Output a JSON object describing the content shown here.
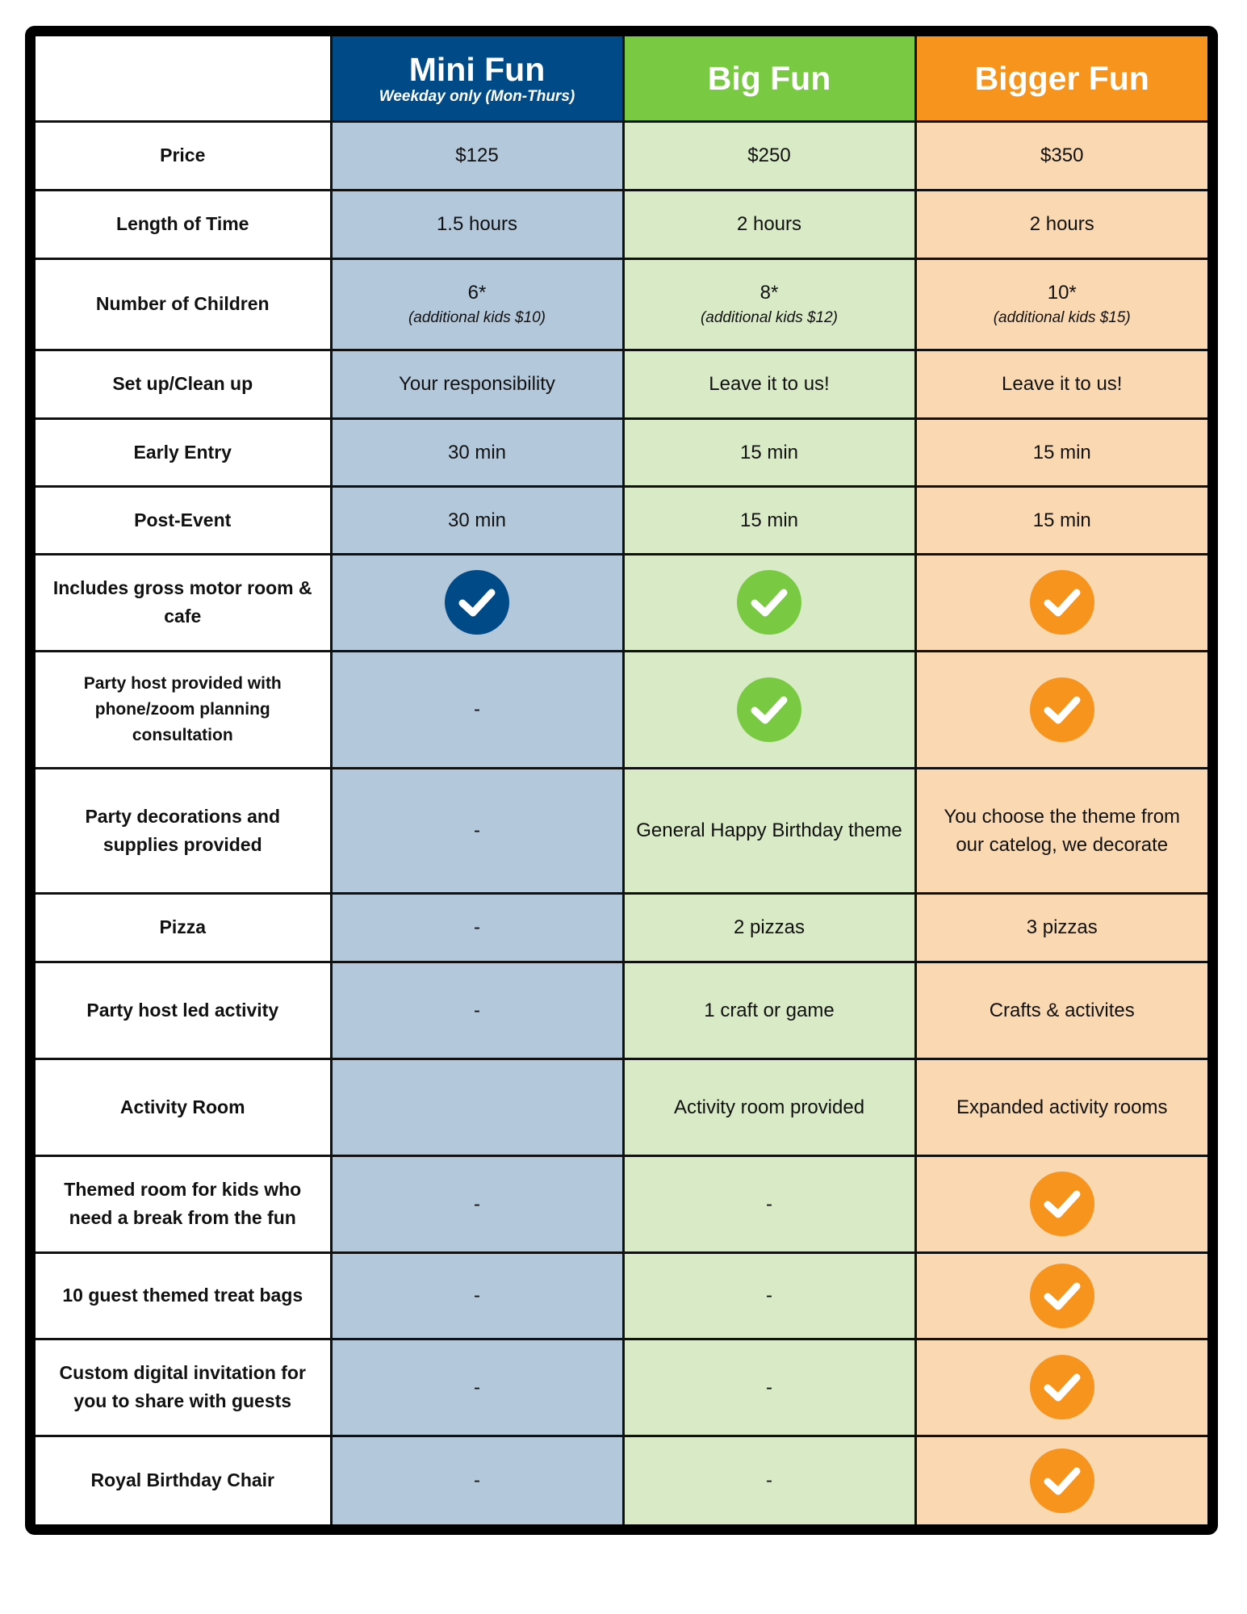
{
  "header": {
    "mini": {
      "title": "Mini Fun",
      "subtitle": "Weekday only (Mon-Thurs)"
    },
    "big": {
      "title": "Big Fun"
    },
    "bigger": {
      "title": "Bigger Fun"
    }
  },
  "colors": {
    "mini_header": "#004b87",
    "big_header": "#7ac943",
    "bigger_header": "#f7941d",
    "mini_cell": "#b4c8dc",
    "big_cell": "#d8ebc6",
    "bigger_cell": "#fad8b2"
  },
  "icons": {
    "check": "check-circle-icon"
  },
  "rows": {
    "price": {
      "label": "Price",
      "mini": "$125",
      "big": "$250",
      "bigger": "$350"
    },
    "length": {
      "label": "Length of Time",
      "mini": "1.5 hours",
      "big": "2 hours",
      "bigger": "2 hours"
    },
    "children": {
      "label": "Number of Children",
      "mini": "6*",
      "mini_note": "(additional kids $10)",
      "big": "8*",
      "big_note": "(additional kids $12)",
      "bigger": "10*",
      "bigger_note": "(additional kids $15)"
    },
    "setup": {
      "label": "Set up/Clean up",
      "mini": "Your responsibility",
      "big": "Leave it to us!",
      "bigger": "Leave it to us!"
    },
    "early_entry": {
      "label": "Early Entry",
      "mini": "30 min",
      "big": "15 min",
      "bigger": "15 min"
    },
    "post_event": {
      "label": "Post-Event",
      "mini": "30 min",
      "big": "15 min",
      "bigger": "15 min"
    },
    "gross_motor": {
      "label": "Includes gross motor room & cafe",
      "mini": true,
      "big": true,
      "bigger": true
    },
    "party_host": {
      "label": "Party host provided with phone/zoom planning consultation",
      "mini": "-",
      "big": true,
      "bigger": true
    },
    "decorations": {
      "label": "Party decorations and supplies provided",
      "mini": "-",
      "big": "General Happy Birthday theme",
      "bigger": "You choose the theme from our catelog, we decorate"
    },
    "pizza": {
      "label": "Pizza",
      "mini": "-",
      "big": "2 pizzas",
      "bigger": "3 pizzas"
    },
    "host_activity": {
      "label": "Party host led activity",
      "mini": "-",
      "big": "1 craft or game",
      "bigger": "Crafts & activites"
    },
    "activity_room": {
      "label": "Activity Room",
      "mini": "",
      "big": "Activity room provided",
      "bigger": "Expanded activity rooms"
    },
    "themed_room": {
      "label": "Themed room for kids who need a break from the fun",
      "mini": "-",
      "big": "-",
      "bigger": true
    },
    "treat_bags": {
      "label": "10 guest themed treat bags",
      "mini": "-",
      "big": "-",
      "bigger": true
    },
    "invitation": {
      "label": "Custom digital invitation for you to share with guests",
      "mini": "-",
      "big": "-",
      "bigger": true
    },
    "royal_chair": {
      "label": "Royal Birthday Chair",
      "mini": "-",
      "big": "-",
      "bigger": true
    }
  }
}
